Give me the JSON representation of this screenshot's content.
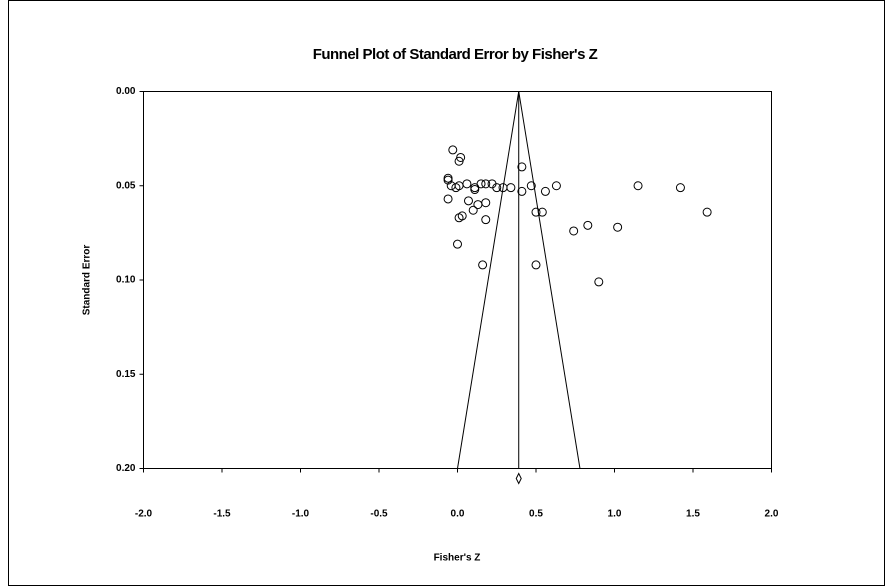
{
  "chart_data": {
    "type": "scatter",
    "title": "Funnel Plot of Standard Error by Fisher's Z",
    "x_label": "Fisher's Z",
    "y_label": "Standard Error",
    "x": [
      -0.03,
      0.02,
      0.01,
      0.41,
      -0.06,
      -0.06,
      -0.04,
      -0.01,
      0.01,
      0.06,
      0.11,
      0.11,
      0.15,
      0.18,
      0.22,
      0.25,
      0.29,
      0.34,
      0.41,
      0.47,
      0.56,
      0.63,
      1.15,
      1.42,
      1.59,
      -0.06,
      0.07,
      0.13,
      0.18,
      0.1,
      0.5,
      0.54,
      0.03,
      0.01,
      0.18,
      0.83,
      0.74,
      1.02,
      0.0,
      0.16,
      0.5,
      0.9
    ],
    "values": [
      0.031,
      0.035,
      0.037,
      0.04,
      0.046,
      0.047,
      0.05,
      0.051,
      0.05,
      0.049,
      0.051,
      0.052,
      0.049,
      0.049,
      0.049,
      0.051,
      0.051,
      0.051,
      0.053,
      0.05,
      0.053,
      0.05,
      0.05,
      0.051,
      0.064,
      0.057,
      0.058,
      0.06,
      0.059,
      0.063,
      0.064,
      0.064,
      0.066,
      0.067,
      0.068,
      0.071,
      0.074,
      0.072,
      0.081,
      0.092,
      0.092,
      0.101
    ],
    "summary_z": 0.39,
    "funnel_bounds_at_ylim": [
      0.0,
      0.78
    ],
    "xlim": [
      -2.0,
      2.0
    ],
    "ylim": [
      0.2,
      0.0
    ],
    "xticks": [
      {
        "value": -2.0,
        "label": "-2.0"
      },
      {
        "value": -1.5,
        "label": "-1.5"
      },
      {
        "value": -1.0,
        "label": "-1.0"
      },
      {
        "value": -0.5,
        "label": "-0.5"
      },
      {
        "value": 0.0,
        "label": "0.0"
      },
      {
        "value": 0.5,
        "label": "0.5"
      },
      {
        "value": 1.0,
        "label": "1.0"
      },
      {
        "value": 1.5,
        "label": "1.5"
      },
      {
        "value": 2.0,
        "label": "2.0"
      }
    ],
    "yticks": [
      {
        "value": 0.0,
        "label": "0.00"
      },
      {
        "value": 0.05,
        "label": "0.05"
      },
      {
        "value": 0.1,
        "label": "0.10"
      },
      {
        "value": 0.15,
        "label": "0.15"
      },
      {
        "value": 0.2,
        "label": "0.20"
      }
    ],
    "color": "#000000"
  }
}
